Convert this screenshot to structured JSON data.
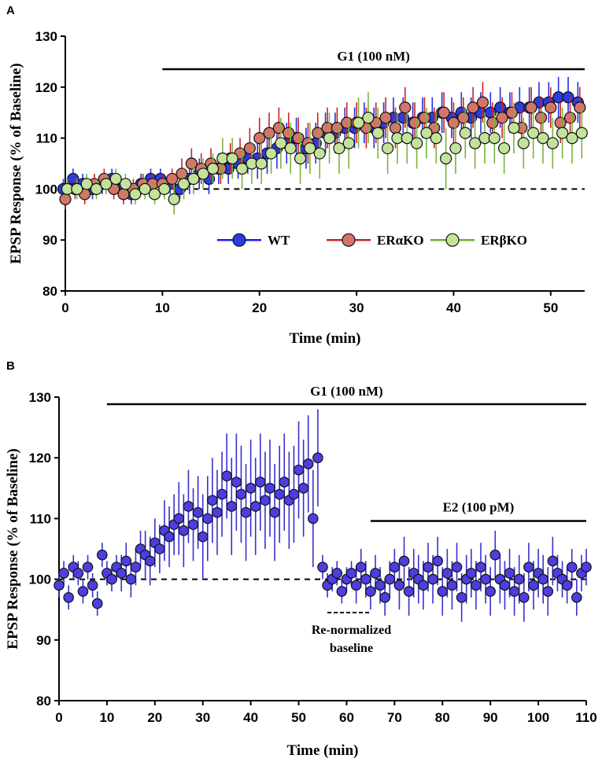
{
  "chart_data": [
    {
      "panel": "A",
      "type": "scatter",
      "xlabel": "Time (min)",
      "ylabel": "EPSP Response (% of Baseline)",
      "xlim": [
        0,
        53.5
      ],
      "ylim": [
        80,
        130
      ],
      "xticks": [
        0,
        10,
        20,
        30,
        40,
        50
      ],
      "yticks": [
        80,
        90,
        100,
        110,
        120,
        130
      ],
      "baseline": 100,
      "treatment": {
        "label": "G1 (100 nM)",
        "start": 10,
        "end": 53.5
      },
      "legend": [
        "WT",
        "ERαKO",
        "ERβKO"
      ],
      "series": [
        {
          "name": "WT",
          "color": "#1a1aff",
          "fill": "#2b3be0",
          "errcolor": "#2430e0",
          "x": [
            0,
            1,
            2,
            3,
            4,
            5,
            6,
            7,
            8,
            9,
            10,
            11,
            12,
            13,
            14,
            15,
            16,
            17,
            18,
            19,
            20,
            21,
            22,
            23,
            24,
            25,
            26,
            27,
            28,
            29,
            30,
            31,
            32,
            33,
            34,
            35,
            36,
            37,
            38,
            39,
            40,
            41,
            42,
            43,
            44,
            45,
            46,
            47,
            48,
            49,
            50,
            51,
            52,
            53
          ],
          "y": [
            100,
            102,
            101,
            100,
            101,
            102,
            100,
            99,
            101,
            102,
            102,
            101,
            100,
            102,
            103,
            102,
            104,
            104,
            105,
            106,
            106,
            107,
            108,
            109,
            110,
            108,
            109,
            111,
            111,
            112,
            112,
            113,
            112,
            113,
            114,
            114,
            113,
            114,
            114,
            115,
            114,
            115,
            114,
            115,
            115,
            116,
            115,
            116,
            116,
            117,
            117,
            118,
            118,
            117
          ],
          "err": [
            2,
            2,
            2,
            2,
            2,
            2,
            2,
            2,
            2,
            2,
            2,
            2,
            2,
            3,
            3,
            3,
            3,
            3,
            3,
            3,
            4,
            4,
            4,
            4,
            4,
            4,
            4,
            4,
            4,
            4,
            4,
            4,
            4,
            4,
            4,
            4,
            4,
            4,
            4,
            4,
            4,
            4,
            4,
            4,
            4,
            4,
            4,
            4,
            4,
            4,
            4,
            4,
            4,
            4
          ]
        },
        {
          "name": "ERαKO",
          "color": "#cc2222",
          "fill": "#d4746a",
          "errcolor": "#cc2222",
          "x": [
            0,
            1,
            2,
            3,
            4,
            5,
            6,
            7,
            8,
            9,
            10,
            11,
            12,
            13,
            14,
            15,
            16,
            17,
            18,
            19,
            20,
            21,
            22,
            23,
            24,
            25,
            26,
            27,
            28,
            29,
            30,
            31,
            32,
            33,
            34,
            35,
            36,
            37,
            38,
            39,
            40,
            41,
            42,
            43,
            44,
            45,
            46,
            47,
            48,
            49,
            50,
            51,
            52,
            53
          ],
          "y": [
            98,
            100,
            99,
            101,
            102,
            100,
            99,
            100,
            101,
            101,
            101,
            102,
            103,
            105,
            104,
            105,
            104,
            106,
            107,
            108,
            110,
            111,
            112,
            111,
            110,
            109,
            111,
            112,
            112,
            113,
            113,
            112,
            113,
            114,
            112,
            116,
            113,
            114,
            112,
            115,
            113,
            114,
            116,
            117,
            113,
            114,
            115,
            112,
            116,
            114,
            116,
            113,
            114,
            116
          ],
          "err": [
            2,
            2,
            2,
            2,
            2,
            2,
            2,
            2,
            2,
            2,
            2,
            2,
            3,
            3,
            3,
            3,
            3,
            3,
            3,
            4,
            4,
            4,
            4,
            4,
            4,
            4,
            4,
            4,
            4,
            4,
            4,
            4,
            4,
            4,
            4,
            4,
            4,
            4,
            4,
            4,
            4,
            4,
            4,
            4,
            4,
            4,
            4,
            4,
            4,
            4,
            4,
            4,
            4,
            4
          ]
        },
        {
          "name": "ERβKO",
          "color": "#70b030",
          "fill": "#c3e39a",
          "errcolor": "#7ab33b",
          "x": [
            0,
            1,
            2,
            3,
            4,
            5,
            6,
            7,
            8,
            9,
            10,
            11,
            12,
            13,
            14,
            15,
            16,
            17,
            18,
            19,
            20,
            21,
            22,
            23,
            24,
            25,
            26,
            27,
            28,
            29,
            30,
            31,
            32,
            33,
            34,
            35,
            36,
            37,
            38,
            39,
            40,
            41,
            42,
            43,
            44,
            45,
            46,
            47,
            48,
            49,
            50,
            51,
            52,
            53
          ],
          "y": [
            100,
            100,
            101,
            100,
            101,
            102,
            101,
            99,
            100,
            99,
            100,
            98,
            101,
            102,
            103,
            104,
            106,
            106,
            104,
            105,
            105,
            107,
            109,
            108,
            106,
            108,
            107,
            110,
            108,
            109,
            113,
            114,
            111,
            108,
            110,
            110,
            109,
            111,
            110,
            106,
            108,
            111,
            109,
            110,
            110,
            108,
            112,
            109,
            111,
            110,
            109,
            111,
            110,
            111
          ],
          "err": [
            2,
            2,
            2,
            2,
            2,
            2,
            2,
            2,
            2,
            2,
            2,
            3,
            3,
            3,
            3,
            3,
            4,
            4,
            4,
            4,
            4,
            4,
            5,
            5,
            5,
            5,
            5,
            5,
            5,
            5,
            5,
            5,
            5,
            5,
            5,
            5,
            5,
            5,
            5,
            6,
            5,
            5,
            5,
            5,
            5,
            5,
            5,
            5,
            5,
            5,
            5,
            5,
            5,
            5
          ]
        }
      ]
    },
    {
      "panel": "B",
      "type": "scatter",
      "xlabel": "Time (min)",
      "ylabel": "EPSP Response (% of Baseline)",
      "xlim": [
        0,
        110
      ],
      "ylim": [
        80,
        130
      ],
      "xticks": [
        0,
        10,
        20,
        30,
        40,
        50,
        60,
        70,
        80,
        90,
        100,
        110
      ],
      "yticks": [
        80,
        90,
        100,
        110,
        120,
        130
      ],
      "baseline": 100,
      "treatments": [
        {
          "label": "G1 (100 nM)",
          "start": 10,
          "end": 110
        },
        {
          "label": "E2 (100 pM)",
          "start": 65,
          "end": 110
        }
      ],
      "renormalized_baseline": {
        "label_line1": "Re-normalized",
        "label_line2": "baseline",
        "start": 56,
        "end": 65
      },
      "series": [
        {
          "name": "WT",
          "color": "#3a2fd0",
          "fill": "#4b3fe0",
          "errcolor": "#3a2fd0",
          "x": [
            0,
            1,
            2,
            3,
            4,
            5,
            6,
            7,
            8,
            9,
            10,
            11,
            12,
            13,
            14,
            15,
            16,
            17,
            18,
            19,
            20,
            21,
            22,
            23,
            24,
            25,
            26,
            27,
            28,
            29,
            30,
            31,
            32,
            33,
            34,
            35,
            36,
            37,
            38,
            39,
            40,
            41,
            42,
            43,
            44,
            45,
            46,
            47,
            48,
            49,
            50,
            51,
            52,
            53,
            54,
            55,
            56,
            57,
            58,
            59,
            60,
            61,
            62,
            63,
            64,
            65,
            66,
            67,
            68,
            69,
            70,
            71,
            72,
            73,
            74,
            75,
            76,
            77,
            78,
            79,
            80,
            81,
            82,
            83,
            84,
            85,
            86,
            87,
            88,
            89,
            90,
            91,
            92,
            93,
            94,
            95,
            96,
            97,
            98,
            99,
            100,
            101,
            102,
            103,
            104,
            105,
            106,
            107,
            108,
            109,
            110
          ],
          "y": [
            99,
            101,
            97,
            102,
            101,
            98,
            102,
            99,
            96,
            104,
            101,
            100,
            102,
            101,
            103,
            100,
            102,
            105,
            104,
            103,
            106,
            105,
            108,
            107,
            109,
            110,
            108,
            112,
            109,
            111,
            107,
            110,
            113,
            111,
            114,
            117,
            112,
            116,
            114,
            111,
            115,
            112,
            116,
            113,
            115,
            111,
            114,
            116,
            113,
            114,
            118,
            115,
            119,
            110,
            120,
            102,
            99,
            100,
            101,
            98,
            100,
            101,
            99,
            102,
            100,
            98,
            101,
            99,
            97,
            100,
            102,
            99,
            103,
            98,
            101,
            100,
            99,
            102,
            100,
            103,
            98,
            101,
            99,
            102,
            97,
            100,
            101,
            99,
            102,
            100,
            98,
            104,
            100,
            99,
            101,
            98,
            100,
            97,
            102,
            99,
            101,
            100,
            98,
            103,
            101,
            100,
            99,
            102,
            97,
            101,
            102
          ],
          "err": [
            2,
            2,
            2,
            2,
            2,
            2,
            2,
            2,
            2,
            2,
            2,
            2,
            2,
            3,
            3,
            3,
            3,
            3,
            4,
            4,
            4,
            4,
            5,
            5,
            5,
            6,
            6,
            6,
            6,
            6,
            7,
            7,
            7,
            7,
            7,
            7,
            8,
            8,
            8,
            8,
            8,
            8,
            8,
            8,
            8,
            8,
            8,
            8,
            8,
            8,
            8,
            8,
            8,
            8,
            8,
            2,
            2,
            2,
            2,
            2,
            2,
            2,
            3,
            3,
            3,
            3,
            3,
            3,
            3,
            3,
            3,
            4,
            4,
            4,
            4,
            4,
            4,
            4,
            4,
            4,
            4,
            4,
            4,
            4,
            4,
            4,
            4,
            4,
            4,
            4,
            4,
            4,
            4,
            4,
            4,
            4,
            4,
            4,
            4,
            4,
            4,
            4,
            4,
            4,
            3,
            3,
            3,
            3,
            3,
            3,
            3
          ]
        }
      ]
    }
  ]
}
